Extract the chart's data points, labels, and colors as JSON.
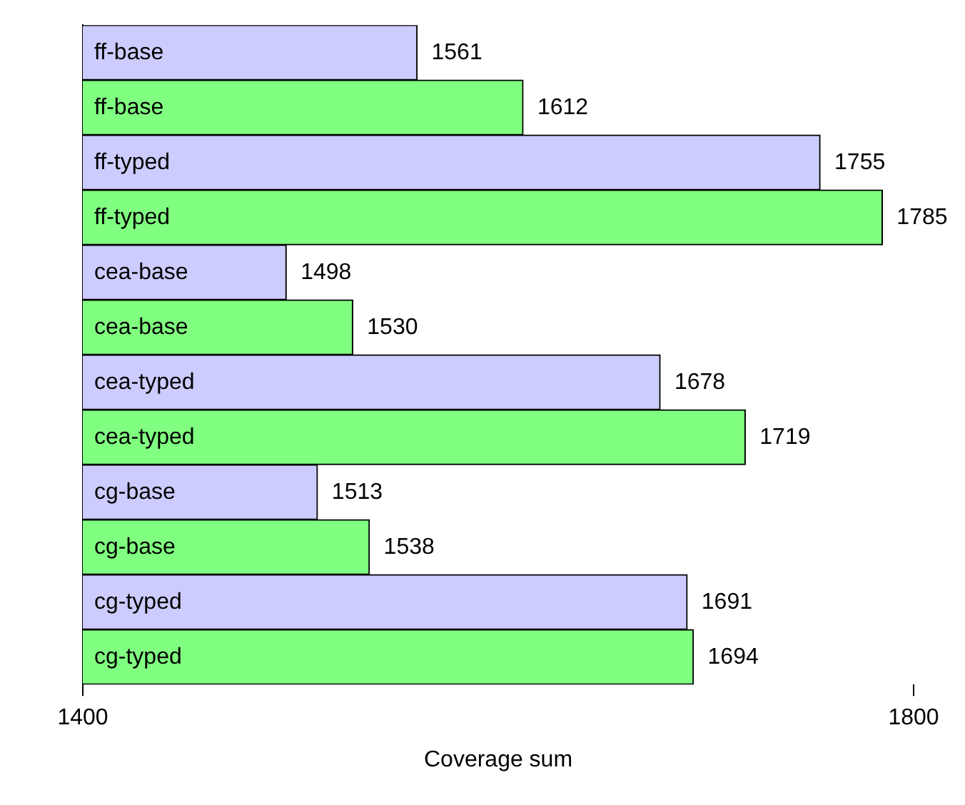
{
  "chart_data": {
    "type": "bar",
    "orientation": "horizontal",
    "xlabel": "Coverage sum",
    "categories": [
      "ff-base",
      "ff-base",
      "ff-typed",
      "ff-typed",
      "cea-base",
      "cea-base",
      "cea-typed",
      "cea-typed",
      "cg-base",
      "cg-base",
      "cg-typed",
      "cg-typed"
    ],
    "values": [
      1561,
      1612,
      1755,
      1785,
      1498,
      1530,
      1678,
      1719,
      1513,
      1538,
      1691,
      1694
    ],
    "colors": [
      "#ccccff",
      "#80ff80",
      "#ccccff",
      "#80ff80",
      "#ccccff",
      "#80ff80",
      "#ccccff",
      "#80ff80",
      "#ccccff",
      "#80ff80",
      "#ccccff",
      "#80ff80"
    ],
    "xlim": [
      1400,
      1800
    ],
    "xticks": [
      1400,
      1800
    ],
    "data_labels": true,
    "grid": false,
    "legend": false
  }
}
